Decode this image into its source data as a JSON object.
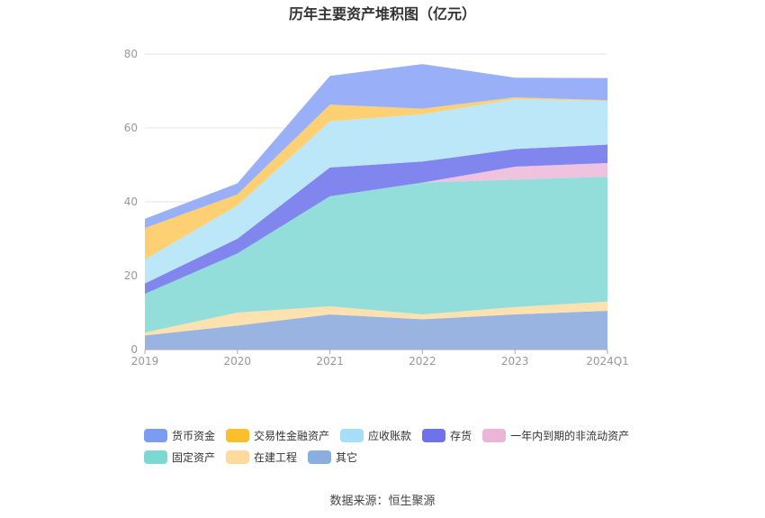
{
  "title": "历年主要资产堆积图（亿元）",
  "source": "数据来源：恒生聚源",
  "chart_data": {
    "type": "area",
    "stacked": true,
    "title": "历年主要资产堆积图（亿元）",
    "categories": [
      "2019",
      "2020",
      "2021",
      "2022",
      "2023",
      "2024Q1"
    ],
    "ylim": [
      0,
      80
    ],
    "yticks": [
      0,
      20,
      40,
      60,
      80
    ],
    "grid": true,
    "legend_position": "bottom",
    "series": [
      {
        "name": "其它",
        "color": "#93b0de",
        "values": [
          3.8,
          6.5,
          9.5,
          8.2,
          9.5,
          10.5
        ]
      },
      {
        "name": "在建工程",
        "color": "#fde0ac",
        "values": [
          0.8,
          3.5,
          2.2,
          1.3,
          2.0,
          2.5
        ]
      },
      {
        "name": "固定资产",
        "color": "#8ddcd8",
        "values": [
          10.5,
          16.0,
          29.8,
          35.7,
          34.5,
          33.8
        ]
      },
      {
        "name": "一年内到期的非流动资产",
        "color": "#eebfdd",
        "values": [
          0,
          0,
          0,
          0,
          3.5,
          3.7
        ]
      },
      {
        "name": "存货",
        "color": "#7a7fee",
        "values": [
          2.8,
          4.0,
          7.8,
          5.7,
          4.8,
          5.0
        ]
      },
      {
        "name": "应收账款",
        "color": "#b8e6f8",
        "values": [
          6.5,
          9.0,
          12.5,
          12.8,
          13.5,
          11.8
        ]
      },
      {
        "name": "交易性金融资产",
        "color": "#fdce6c",
        "values": [
          8.5,
          3.0,
          4.5,
          1.5,
          0.5,
          0.2
        ]
      },
      {
        "name": "货币资金",
        "color": "#94abf7",
        "values": [
          2.5,
          3.0,
          7.8,
          12.1,
          5.3,
          6.0
        ]
      }
    ]
  },
  "legend": {
    "row1": [
      {
        "name": "货币资金",
        "color": "#7c9cf2"
      },
      {
        "name": "交易性金融资产",
        "color": "#fbbf2e"
      },
      {
        "name": "应收账款",
        "color": "#a6def8"
      },
      {
        "name": "存货",
        "color": "#6f72ec"
      },
      {
        "name": "一年内到期的非流动资产",
        "color": "#eab5d7"
      }
    ],
    "row2": [
      {
        "name": "固定资产",
        "color": "#7dd8d4"
      },
      {
        "name": "在建工程",
        "color": "#fedb9c"
      },
      {
        "name": "其它",
        "color": "#8aaedd"
      }
    ]
  }
}
